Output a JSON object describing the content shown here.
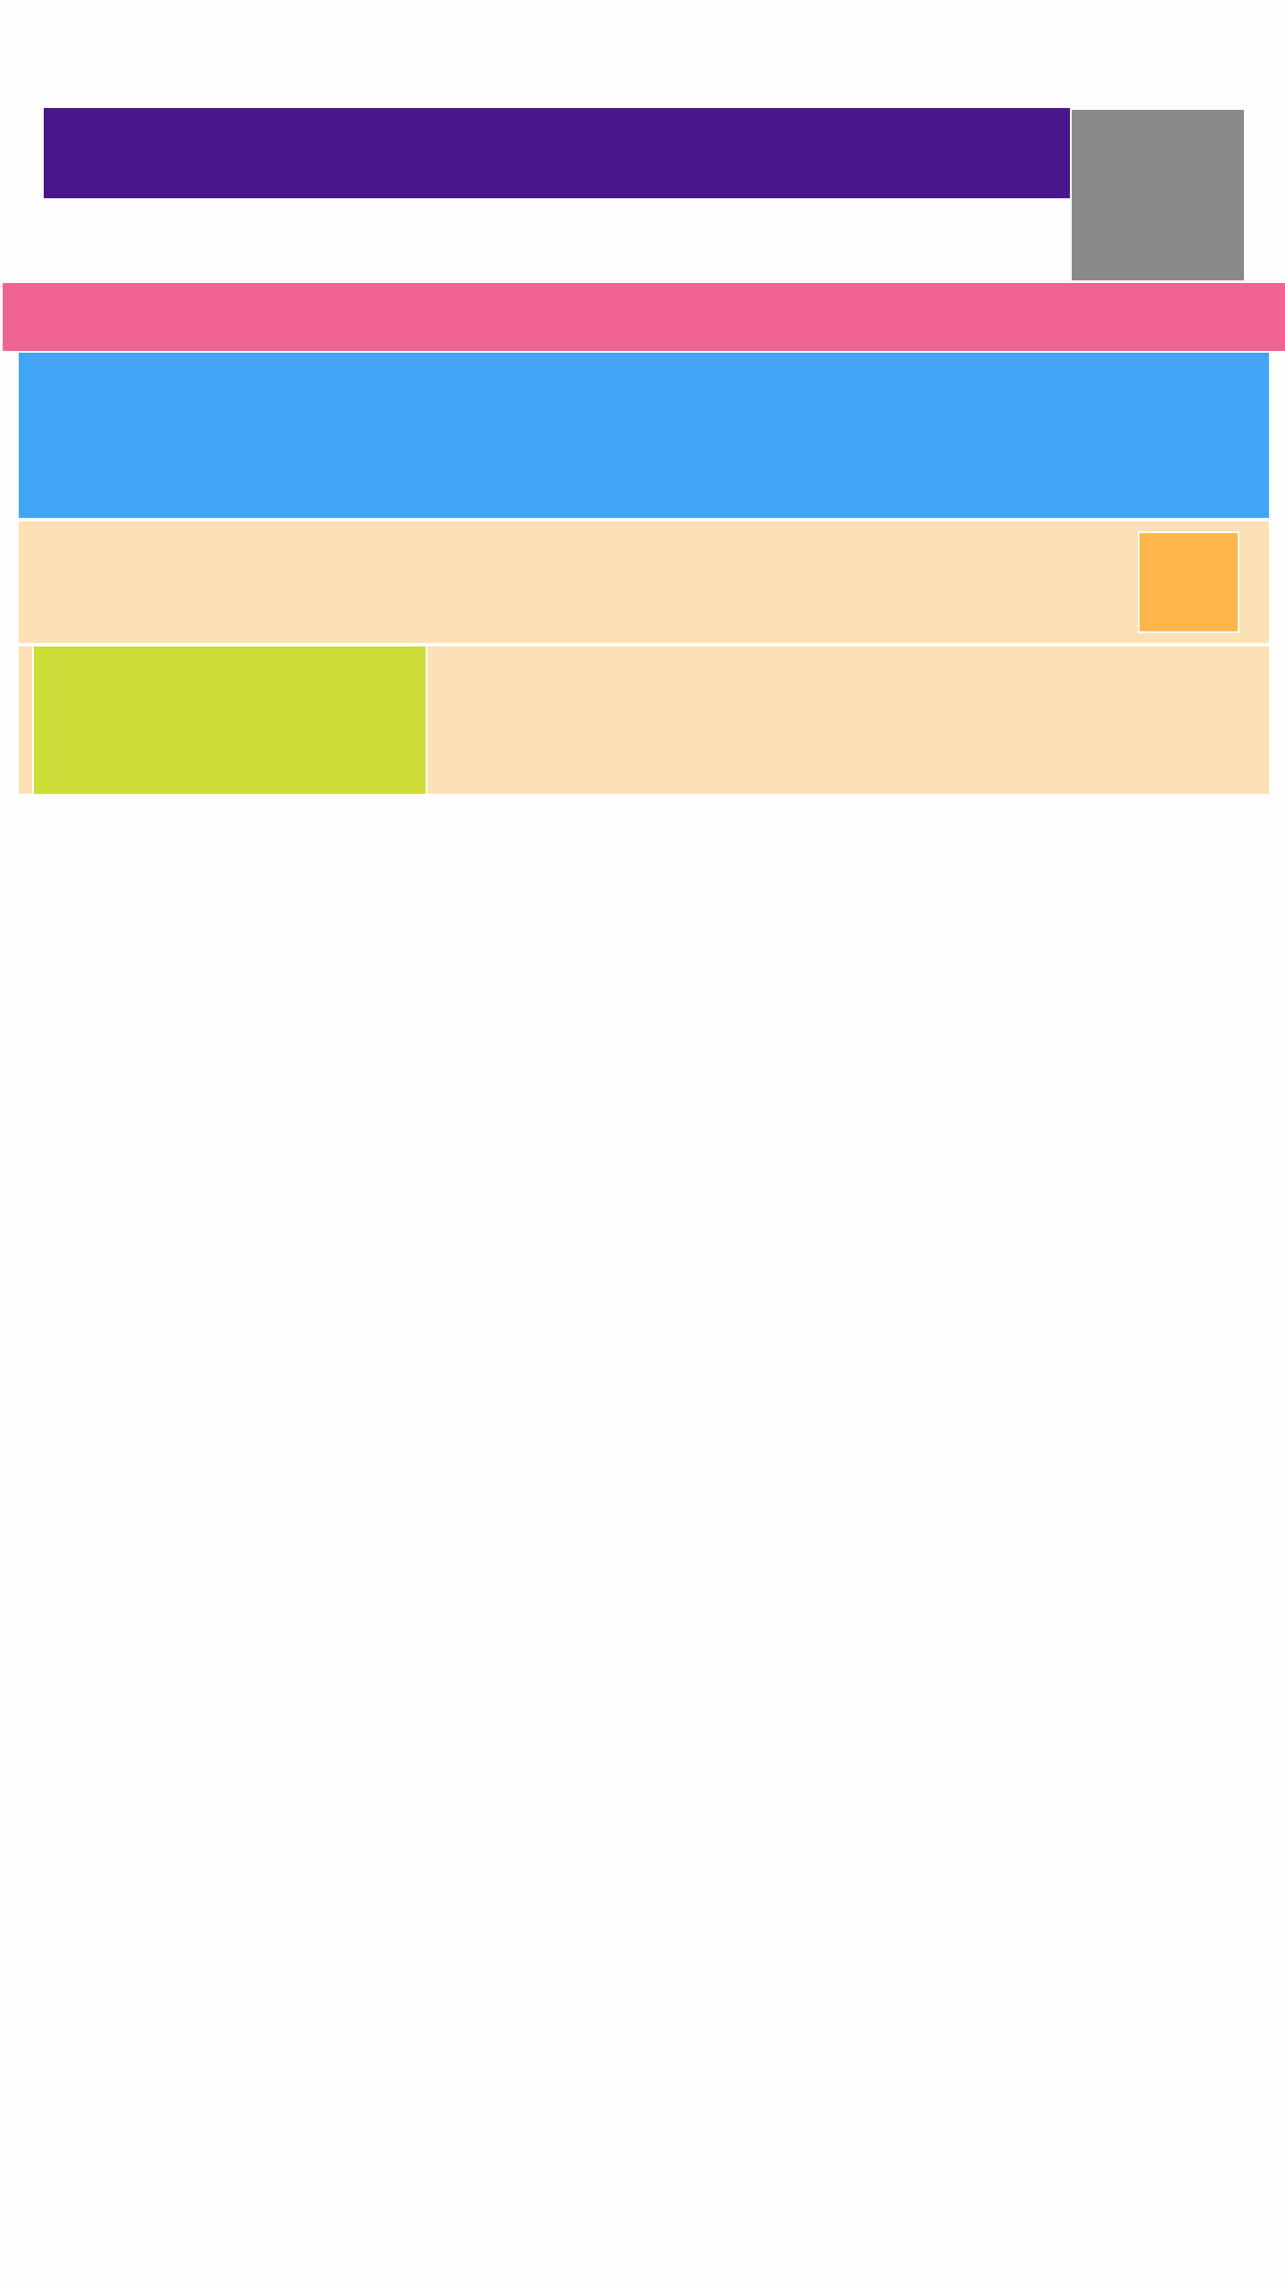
{
  "colors": {
    "page_background": "#fefefe",
    "header_banner": "#4a168b",
    "side_panel": "#8a8a8a",
    "nav_bar": "#f06392",
    "hero_section": "#42a5f5",
    "toolbar_row": "#fde0b3",
    "action_tile": "#ffb74d",
    "content_row": "#fde0b3",
    "feature_card": "#cddc39",
    "divider": "#ffffff"
  }
}
